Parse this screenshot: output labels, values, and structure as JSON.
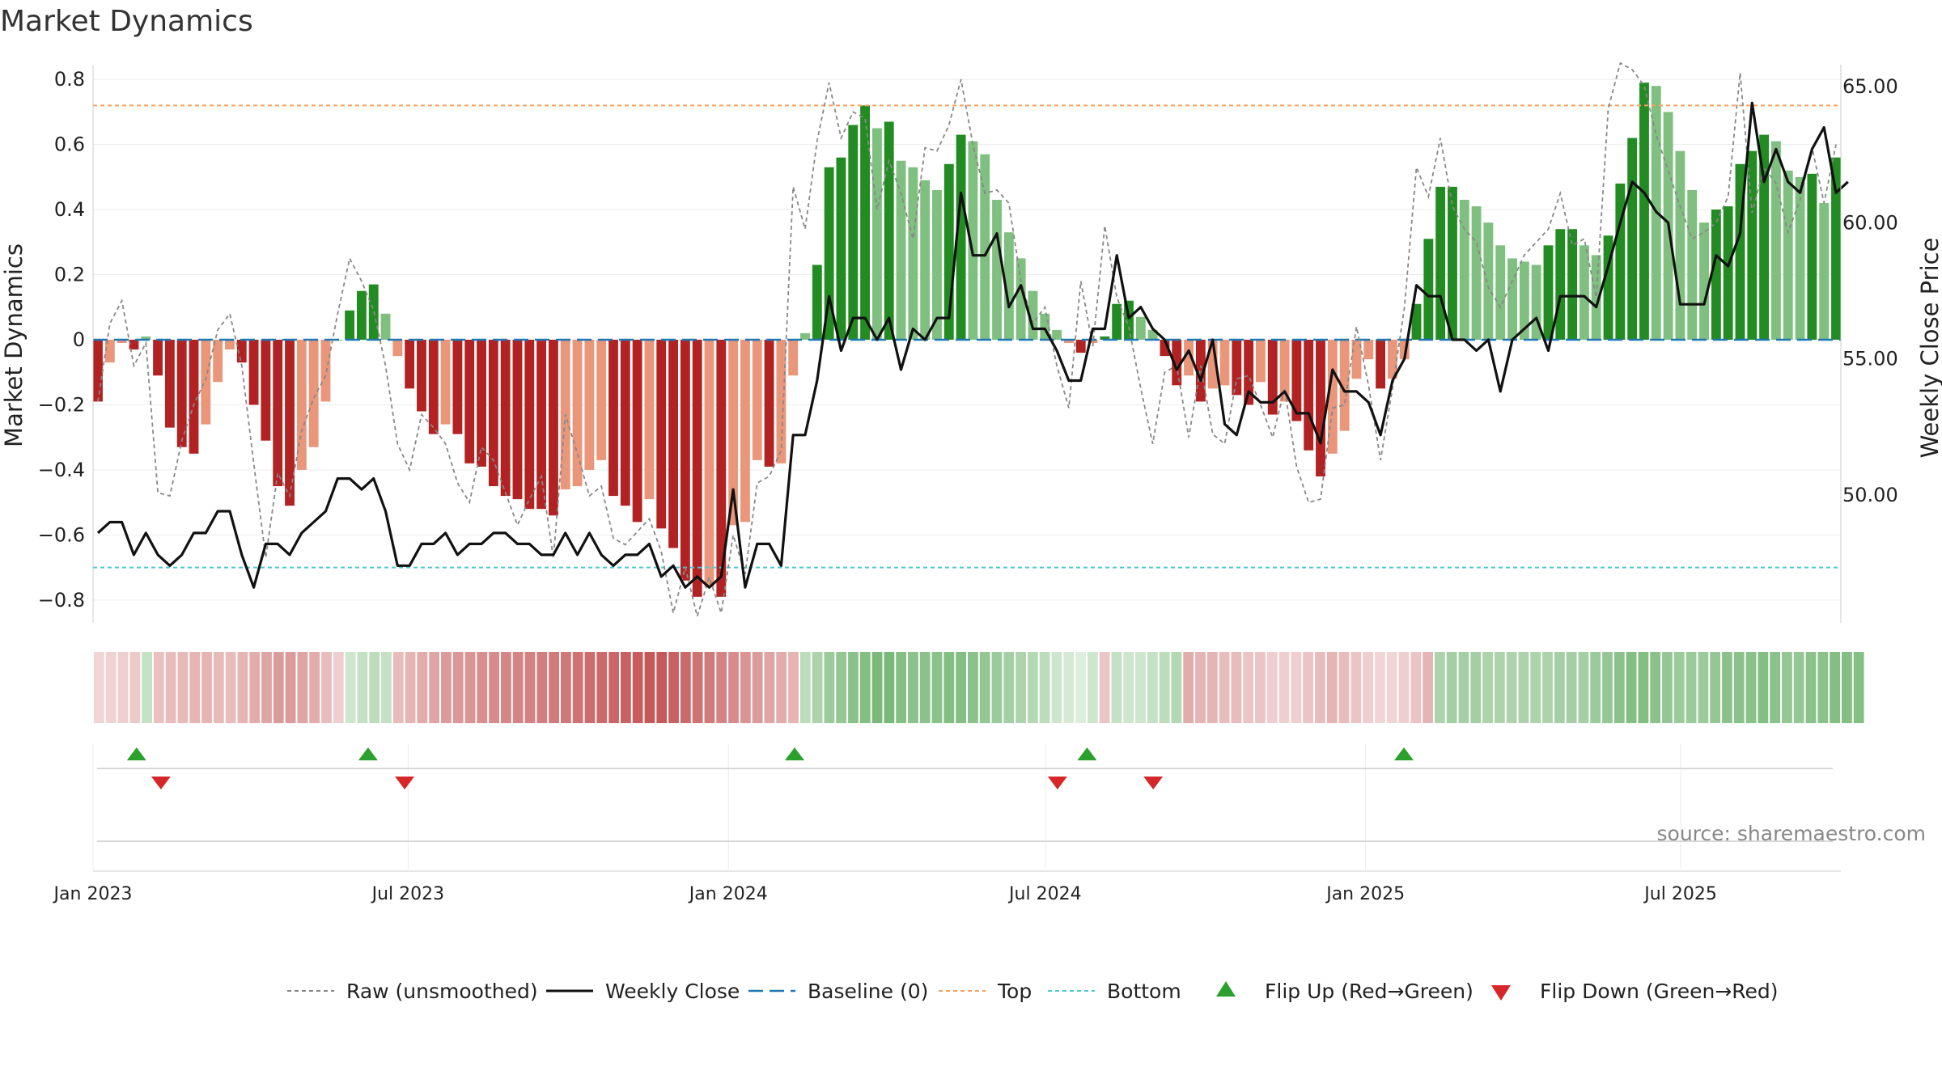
{
  "chart_data": {
    "type": "bar",
    "title": "Market Dynamics",
    "ylabel": "Market Dynamics",
    "y2label": "Weekly Close Price",
    "source": "source: sharemaestro.com",
    "ylim": [
      -0.87,
      0.87
    ],
    "y2lim": [
      45.3,
      66.1
    ],
    "yticks": [
      -0.8,
      -0.6,
      -0.4,
      -0.2,
      0,
      0.2,
      0.4,
      0.6,
      0.8
    ],
    "ytick_labels": [
      "−0.8",
      "−0.6",
      "−0.4",
      "−0.2",
      "0",
      "0.2",
      "0.4",
      "0.6",
      "0.8"
    ],
    "y2ticks": [
      50,
      55,
      60,
      65
    ],
    "y2tick_labels": [
      "50.00",
      "55.00",
      "60.00",
      "65.00"
    ],
    "x_start": "2023-01-01",
    "x_end": "2025-10-01",
    "xticks": [
      "2023-01-01",
      "2023-07-01",
      "2024-01-01",
      "2024-07-01",
      "2025-01-01",
      "2025-07-01"
    ],
    "xtick_labels": [
      "Jan 2023",
      "Jul 2023",
      "Jan 2024",
      "Jul 2024",
      "Jan 2025",
      "Jul 2025"
    ],
    "top_line": 0.72,
    "bottom_line": -0.7,
    "baseline": 0,
    "colors": {
      "strong_neg": "#b22222",
      "weak_neg": "#e9967a",
      "strong_pos": "#228b22",
      "weak_pos": "#7fbf7f",
      "raw": "#888888",
      "close": "#111111",
      "baseline": "#1f77b4",
      "top": "#f4a261",
      "bottom": "#4ec9d6",
      "flip_up": "#2ca02c",
      "flip_down": "#d62728"
    },
    "smoothed": [
      -0.19,
      -0.07,
      -0.01,
      -0.03,
      0.01,
      -0.11,
      -0.27,
      -0.33,
      -0.35,
      -0.26,
      -0.13,
      -0.03,
      -0.07,
      -0.2,
      -0.31,
      -0.45,
      -0.51,
      -0.4,
      -0.33,
      -0.19,
      0,
      0.09,
      0.15,
      0.17,
      0.08,
      -0.05,
      -0.15,
      -0.22,
      -0.29,
      -0.26,
      -0.29,
      -0.38,
      -0.39,
      -0.45,
      -0.48,
      -0.49,
      -0.52,
      -0.52,
      -0.54,
      -0.46,
      -0.45,
      -0.4,
      -0.37,
      -0.48,
      -0.51,
      -0.56,
      -0.49,
      -0.58,
      -0.64,
      -0.74,
      -0.79,
      -0.76,
      -0.79,
      -0.57,
      -0.56,
      -0.37,
      -0.39,
      -0.38,
      -0.11,
      0.02,
      0.23,
      0.53,
      0.56,
      0.66,
      0.72,
      0.65,
      0.67,
      0.55,
      0.53,
      0.49,
      0.46,
      0.54,
      0.63,
      0.61,
      0.57,
      0.43,
      0.33,
      0.25,
      0.15,
      0.08,
      0.03,
      -0.01,
      -0.04,
      -0.01,
      0.01,
      0.11,
      0.12,
      0.07,
      0.03,
      -0.05,
      -0.14,
      -0.11,
      -0.19,
      -0.15,
      -0.14,
      -0.17,
      -0.2,
      -0.13,
      -0.23,
      -0.19,
      -0.25,
      -0.34,
      -0.42,
      -0.35,
      -0.28,
      -0.12,
      -0.06,
      -0.15,
      -0.12,
      -0.06,
      0.11,
      0.31,
      0.47,
      0.47,
      0.43,
      0.41,
      0.36,
      0.29,
      0.25,
      0.24,
      0.23,
      0.29,
      0.34,
      0.34,
      0.29,
      0.26,
      0.32,
      0.48,
      0.62,
      0.79,
      0.78,
      0.7,
      0.58,
      0.46,
      0.36,
      0.4,
      0.41,
      0.54,
      0.58,
      0.63,
      0.61,
      0.52,
      0.5,
      0.51,
      0.42,
      0.56
    ],
    "raw": [
      -0.19,
      0.05,
      0.12,
      -0.08,
      -0.01,
      -0.47,
      -0.48,
      -0.31,
      -0.2,
      -0.12,
      0.03,
      0.08,
      -0.08,
      -0.38,
      -0.67,
      -0.41,
      -0.48,
      -0.28,
      -0.18,
      -0.11,
      0.08,
      0.25,
      0.18,
      0.09,
      -0.08,
      -0.32,
      -0.4,
      -0.23,
      -0.27,
      -0.32,
      -0.44,
      -0.5,
      -0.33,
      -0.37,
      -0.47,
      -0.57,
      -0.49,
      -0.42,
      -0.67,
      -0.23,
      -0.35,
      -0.48,
      -0.45,
      -0.61,
      -0.63,
      -0.59,
      -0.55,
      -0.65,
      -0.84,
      -0.7,
      -0.85,
      -0.73,
      -0.84,
      -0.6,
      -0.72,
      -0.44,
      -0.42,
      -0.34,
      0.47,
      0.34,
      0.61,
      0.79,
      0.62,
      0.7,
      0.68,
      0.4,
      0.55,
      0.45,
      0.31,
      0.59,
      0.58,
      0.66,
      0.8,
      0.6,
      0.45,
      0.46,
      0.42,
      0.18,
      0.05,
      0.1,
      -0.08,
      -0.21,
      0.18,
      -0.02,
      0.35,
      0.13,
      0.04,
      -0.15,
      -0.32,
      -0.1,
      -0.08,
      -0.3,
      -0.08,
      -0.29,
      -0.32,
      -0.12,
      -0.11,
      -0.2,
      -0.3,
      -0.15,
      -0.39,
      -0.5,
      -0.49,
      -0.21,
      -0.2,
      0.04,
      -0.14,
      -0.37,
      -0.15,
      0.1,
      0.53,
      0.44,
      0.62,
      0.41,
      0.34,
      0.3,
      0.16,
      0.1,
      0.18,
      0.26,
      0.3,
      0.34,
      0.45,
      0.29,
      0.31,
      0.13,
      0.71,
      0.85,
      0.83,
      0.78,
      0.63,
      0.52,
      0.41,
      0.31,
      0.33,
      0.36,
      0.44,
      0.82,
      0.39,
      0.53,
      0.48,
      0.33,
      0.43,
      0.59,
      0.42,
      0.6
    ],
    "close": [
      48.6,
      49,
      49,
      47.8,
      48.6,
      47.8,
      47.4,
      47.8,
      48.6,
      48.6,
      49.4,
      49.4,
      47.8,
      46.6,
      48.2,
      48.2,
      47.8,
      48.6,
      49,
      49.4,
      50.6,
      50.6,
      50.2,
      50.6,
      49.4,
      47.4,
      47.4,
      48.2,
      48.2,
      48.6,
      47.8,
      48.2,
      48.2,
      48.6,
      48.6,
      48.2,
      48.2,
      47.8,
      47.8,
      48.6,
      47.8,
      48.6,
      47.8,
      47.4,
      47.8,
      47.8,
      48.2,
      47,
      47.4,
      46.6,
      47,
      46.6,
      47,
      50.2,
      46.6,
      48.2,
      48.2,
      47.4,
      52.2,
      52.2,
      54.2,
      57.3,
      55.3,
      56.5,
      56.5,
      55.7,
      56.5,
      54.6,
      56.1,
      55.7,
      56.5,
      56.5,
      61.1,
      58.8,
      58.8,
      59.6,
      56.9,
      57.7,
      56.1,
      56.1,
      55.3,
      54.2,
      54.2,
      56.1,
      56.1,
      58.8,
      56.5,
      56.9,
      56.1,
      55.7,
      54.6,
      55.3,
      54.2,
      55.7,
      52.6,
      52.2,
      53.8,
      53.4,
      53.4,
      53.8,
      53.0,
      53.0,
      51.9,
      54.6,
      53.8,
      53.8,
      53.4,
      52.2,
      54.2,
      55.0,
      57.7,
      57.3,
      57.3,
      55.7,
      55.7,
      55.3,
      55.7,
      53.8,
      55.7,
      56.1,
      56.5,
      55.3,
      57.3,
      57.3,
      57.3,
      56.9,
      58.4,
      60.0,
      61.5,
      61.1,
      60.4,
      60.0,
      57.0,
      57.0,
      57.0,
      58.8,
      58.4,
      59.6,
      64.4,
      61.5,
      62.7,
      61.5,
      61.1,
      62.7,
      63.5,
      61.1,
      61.5
    ],
    "strip_intensity": [
      0.25,
      0.27,
      0.3,
      0.32,
      0.35,
      0.37,
      0.4,
      0.42,
      0.45,
      0.45,
      0.42,
      0.4,
      0.45,
      0.5,
      0.55,
      0.6,
      0.6,
      0.55,
      0.5,
      0.4,
      0.3,
      0.3,
      0.35,
      0.4,
      0.35,
      0.4,
      0.45,
      0.5,
      0.55,
      0.6,
      0.62,
      0.65,
      0.68,
      0.7,
      0.72,
      0.74,
      0.76,
      0.78,
      0.8,
      0.82,
      0.85,
      0.88,
      0.9,
      0.92,
      0.95,
      0.98,
      1.0,
      1.0,
      0.95,
      0.9,
      0.85,
      0.8,
      0.75,
      0.7,
      0.65,
      0.6,
      0.55,
      0.5,
      0.45,
      0.4,
      0.5,
      0.6,
      0.65,
      0.7,
      0.75,
      0.8,
      0.8,
      0.75,
      0.7,
      0.7,
      0.7,
      0.75,
      0.75,
      0.7,
      0.65,
      0.6,
      0.55,
      0.5,
      0.45,
      0.4,
      0.3,
      0.25,
      0.2,
      0.3,
      0.35,
      0.35,
      0.3,
      0.3,
      0.35,
      0.4,
      0.45,
      0.5,
      0.45,
      0.45,
      0.4,
      0.4,
      0.35,
      0.35,
      0.3,
      0.3,
      0.3,
      0.35,
      0.4,
      0.45,
      0.4,
      0.35,
      0.3,
      0.25,
      0.25,
      0.3,
      0.35,
      0.45,
      0.5,
      0.55,
      0.55,
      0.55,
      0.5,
      0.5,
      0.5,
      0.5,
      0.5,
      0.5,
      0.55,
      0.55,
      0.55,
      0.6,
      0.65,
      0.7,
      0.75,
      0.75,
      0.7,
      0.65,
      0.6,
      0.6,
      0.6,
      0.65,
      0.7,
      0.7,
      0.7,
      0.75,
      0.7,
      0.65,
      0.65,
      0.7,
      0.7,
      0.75,
      0.75,
      0.75
    ],
    "strip_sign": [
      -1,
      -1,
      -1,
      -1,
      1,
      -1,
      -1,
      -1,
      -1,
      -1,
      -1,
      -1,
      -1,
      -1,
      -1,
      -1,
      -1,
      -1,
      -1,
      -1,
      -1,
      1,
      1,
      1,
      1,
      -1,
      -1,
      -1,
      -1,
      -1,
      -1,
      -1,
      -1,
      -1,
      -1,
      -1,
      -1,
      -1,
      -1,
      -1,
      -1,
      -1,
      -1,
      -1,
      -1,
      -1,
      -1,
      -1,
      -1,
      -1,
      -1,
      -1,
      -1,
      -1,
      -1,
      -1,
      -1,
      -1,
      -1,
      1,
      1,
      1,
      1,
      1,
      1,
      1,
      1,
      1,
      1,
      1,
      1,
      1,
      1,
      1,
      1,
      1,
      1,
      1,
      1,
      1,
      1,
      1,
      1,
      1,
      -1,
      1,
      1,
      1,
      1,
      1,
      1,
      -1,
      -1,
      -1,
      -1,
      -1,
      -1,
      -1,
      -1,
      -1,
      -1,
      -1,
      -1,
      -1,
      -1,
      -1,
      -1,
      -1,
      -1,
      -1,
      -1,
      -1,
      1,
      1,
      1,
      1,
      1,
      1,
      1,
      1,
      1,
      1,
      1,
      1,
      1,
      1,
      1,
      1,
      1,
      1,
      1,
      1,
      1,
      1,
      1,
      1,
      1,
      1,
      1,
      1,
      1,
      1,
      1,
      1,
      1,
      1,
      1,
      1,
      1
    ],
    "flips_up": [
      "2023-01-26",
      "2023-06-08",
      "2024-02-08",
      "2024-07-25",
      "2025-01-23"
    ],
    "flips_down": [
      "2023-02-09",
      "2023-06-29",
      "2024-07-08",
      "2024-09-01"
    ],
    "legend": [
      {
        "key": "raw",
        "label": "Raw (unsmoothed)"
      },
      {
        "key": "close",
        "label": "Weekly Close"
      },
      {
        "key": "baseline",
        "label": "Baseline (0)"
      },
      {
        "key": "top",
        "label": "Top"
      },
      {
        "key": "bottom",
        "label": "Bottom"
      },
      {
        "key": "flip_up",
        "label": "Flip Up (Red→Green)"
      },
      {
        "key": "flip_down",
        "label": "Flip Down (Green→Red)"
      }
    ]
  }
}
